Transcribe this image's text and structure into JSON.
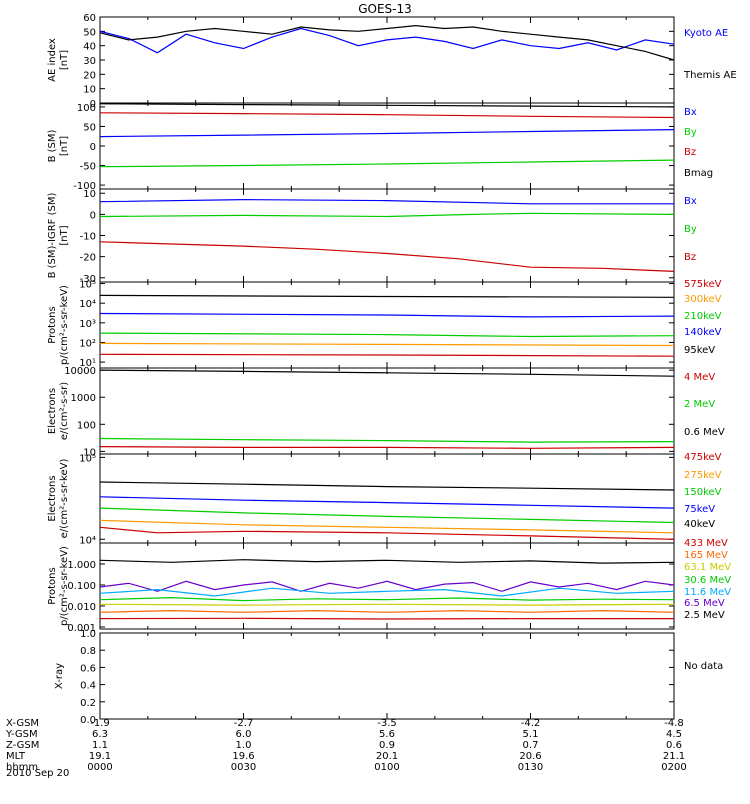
{
  "title": "GOES-13",
  "date": "2010 Sep 20",
  "orbit_table": {
    "row_labels": [
      "X-GSM",
      "Y-GSM",
      "Z-GSM",
      "MLT",
      "hhmm"
    ],
    "columns": [
      [
        "-1.9",
        "6.3",
        "1.1",
        "19.1",
        "0000"
      ],
      [
        "-2.7",
        "6.0",
        "1.0",
        "19.6",
        "0030"
      ],
      [
        "-3.5",
        "5.6",
        "0.9",
        "20.1",
        "0100"
      ],
      [
        "-4.2",
        "5.1",
        "0.7",
        "20.6",
        "0130"
      ],
      [
        "-4.8",
        "4.5",
        "0.6",
        "21.1",
        "0200"
      ]
    ]
  },
  "chart_data": [
    {
      "type": "line",
      "ylabel": [
        "AE index",
        "[nT]"
      ],
      "scale": "linear",
      "ylim": [
        0,
        60
      ],
      "ticks": [
        "0",
        "10",
        "20",
        "30",
        "40",
        "50",
        "60"
      ],
      "tick_values": [
        0,
        10,
        20,
        30,
        40,
        50,
        60
      ],
      "x_hours": [
        0,
        2
      ],
      "legend": [
        {
          "label": "Kyoto AE",
          "color": "#0000ff"
        },
        {
          "label": "Themis AE",
          "color": "#000000"
        }
      ],
      "series": [
        {
          "name": "Kyoto AE",
          "color": "#0000ff",
          "x": [
            0,
            0.1,
            0.2,
            0.3,
            0.4,
            0.5,
            0.6,
            0.7,
            0.8,
            0.9,
            1.0,
            1.1,
            1.2,
            1.3,
            1.4,
            1.5,
            1.6,
            1.7,
            1.8,
            1.9,
            2.0
          ],
          "y": [
            50,
            45,
            35,
            48,
            42,
            38,
            46,
            52,
            47,
            40,
            44,
            46,
            43,
            38,
            44,
            40,
            38,
            42,
            37,
            44,
            41
          ]
        },
        {
          "name": "Themis AE",
          "color": "#000000",
          "x": [
            0,
            0.1,
            0.2,
            0.3,
            0.4,
            0.5,
            0.6,
            0.7,
            0.8,
            0.9,
            1.0,
            1.1,
            1.2,
            1.3,
            1.4,
            1.5,
            1.6,
            1.7,
            1.8,
            1.9,
            2.0
          ],
          "y": [
            49,
            44,
            46,
            50,
            52,
            50,
            48,
            53,
            51,
            50,
            52,
            54,
            52,
            53,
            50,
            48,
            46,
            44,
            40,
            36,
            30
          ]
        }
      ]
    },
    {
      "type": "line",
      "ylabel": [
        "B (SM)",
        "[nT]"
      ],
      "scale": "linear",
      "ylim": [
        -110,
        110
      ],
      "ticks": [
        "-100",
        "-50",
        "0",
        "50",
        "100"
      ],
      "tick_values": [
        -100,
        -50,
        0,
        50,
        100
      ],
      "x_hours": [
        0,
        2
      ],
      "legend": [
        {
          "label": "Bx",
          "color": "#0000ff"
        },
        {
          "label": "By",
          "color": "#00cc00"
        },
        {
          "label": "Bz",
          "color": "#cc0000"
        },
        {
          "label": "Bmag",
          "color": "#000000"
        }
      ],
      "series": [
        {
          "name": "Bmag",
          "color": "#000000",
          "x": [
            0,
            0.5,
            1.0,
            1.5,
            2.0
          ],
          "y": [
            108,
            106,
            104,
            102,
            100
          ]
        },
        {
          "name": "Bz",
          "color": "#cc0000",
          "x": [
            0,
            0.5,
            1.0,
            1.5,
            2.0
          ],
          "y": [
            85,
            83,
            80,
            76,
            73
          ]
        },
        {
          "name": "Bx",
          "color": "#0000ff",
          "x": [
            0,
            0.5,
            1.0,
            1.5,
            2.0
          ],
          "y": [
            24,
            28,
            32,
            37,
            42
          ]
        },
        {
          "name": "By",
          "color": "#00cc00",
          "x": [
            0,
            0.5,
            1.0,
            1.5,
            2.0
          ],
          "y": [
            -53,
            -50,
            -46,
            -41,
            -36
          ]
        }
      ]
    },
    {
      "type": "line",
      "ylabel": [
        "B (SM)-IGRF (SM)",
        "[nT]"
      ],
      "scale": "linear",
      "ylim": [
        -32,
        12
      ],
      "ticks": [
        "-30",
        "-20",
        "-10",
        "0",
        "10"
      ],
      "tick_values": [
        -30,
        -20,
        -10,
        0,
        10
      ],
      "x_hours": [
        0,
        2
      ],
      "legend": [
        {
          "label": "Bx",
          "color": "#0000ff"
        },
        {
          "label": "By",
          "color": "#00cc00"
        },
        {
          "label": "Bz",
          "color": "#cc0000"
        }
      ],
      "series": [
        {
          "name": "Bx",
          "color": "#0000ff",
          "x": [
            0,
            0.5,
            1.0,
            1.5,
            2.0
          ],
          "y": [
            6,
            7,
            6.5,
            5,
            5
          ]
        },
        {
          "name": "By",
          "color": "#00cc00",
          "x": [
            0,
            0.5,
            1.0,
            1.3,
            1.5,
            2.0
          ],
          "y": [
            -1,
            -0.5,
            -1,
            0,
            0.5,
            0
          ]
        },
        {
          "name": "Bz",
          "color": "#cc0000",
          "x": [
            0,
            0.25,
            0.5,
            0.75,
            1.0,
            1.25,
            1.5,
            1.75,
            2.0
          ],
          "y": [
            -13,
            -14,
            -15,
            -16.5,
            -18.5,
            -21,
            -25,
            -25.5,
            -27
          ]
        }
      ]
    },
    {
      "type": "line",
      "ylabel": [
        "Protons",
        "p/(cm²-s-sr-keV)"
      ],
      "scale": "log",
      "ylim": [
        5,
        120000
      ],
      "ticks": [
        "10¹",
        "10²",
        "10³",
        "10⁴",
        "10⁵"
      ],
      "tick_values": [
        10,
        100,
        1000,
        10000,
        100000
      ],
      "x_hours": [
        0,
        2
      ],
      "legend": [
        {
          "label": "575keV",
          "color": "#cc0000"
        },
        {
          "label": "300keV",
          "color": "#ff9900"
        },
        {
          "label": "210keV",
          "color": "#00cc00"
        },
        {
          "label": "140keV",
          "color": "#0000ff"
        },
        {
          "label": "95keV",
          "color": "#000000"
        }
      ],
      "series": [
        {
          "name": "95keV",
          "color": "#000000",
          "x": [
            0,
            1.0,
            2.0
          ],
          "y": [
            25000,
            22000,
            20000
          ]
        },
        {
          "name": "140keV",
          "color": "#0000ff",
          "x": [
            0,
            1.0,
            1.5,
            2.0
          ],
          "y": [
            3000,
            2500,
            2000,
            2200
          ]
        },
        {
          "name": "210keV",
          "color": "#00cc00",
          "x": [
            0,
            1.0,
            1.5,
            2.0
          ],
          "y": [
            300,
            250,
            200,
            220
          ]
        },
        {
          "name": "300keV",
          "color": "#ff9900",
          "x": [
            0,
            1.0,
            2.0
          ],
          "y": [
            90,
            80,
            70
          ]
        },
        {
          "name": "575keV",
          "color": "#cc0000",
          "x": [
            0,
            1.0,
            2.0
          ],
          "y": [
            25,
            23,
            20
          ]
        }
      ]
    },
    {
      "type": "line",
      "ylabel": [
        "Electrons",
        "e/(cm²-s-sr)"
      ],
      "scale": "log",
      "ylim": [
        8,
        12000
      ],
      "ticks": [
        "10",
        "100",
        "1000",
        "10000"
      ],
      "tick_values": [
        10,
        100,
        1000,
        10000
      ],
      "x_hours": [
        0,
        2
      ],
      "legend": [
        {
          "label": "4 MeV",
          "color": "#cc0000"
        },
        {
          "label": "2 MeV",
          "color": "#00cc00"
        },
        {
          "label": "0.6 MeV",
          "color": "#000000"
        }
      ],
      "series": [
        {
          "name": "0.6 MeV",
          "color": "#000000",
          "x": [
            0,
            0.5,
            1.0,
            1.5,
            2.0
          ],
          "y": [
            10000,
            9000,
            8000,
            7000,
            6000
          ]
        },
        {
          "name": "2 MeV",
          "color": "#00cc00",
          "x": [
            0,
            0.5,
            1.0,
            1.5,
            2.0
          ],
          "y": [
            30,
            27,
            25,
            22,
            23
          ]
        },
        {
          "name": "4 MeV",
          "color": "#cc0000",
          "x": [
            0,
            0.5,
            1.0,
            1.5,
            2.0
          ],
          "y": [
            15,
            14,
            14,
            13,
            14
          ]
        }
      ]
    },
    {
      "type": "line",
      "ylabel": [
        "Electrons",
        "e/(cm²-s-sr-keV)"
      ],
      "scale": "log",
      "ylim": [
        9000,
        110000
      ],
      "ticks": [
        "10⁴",
        "10⁵"
      ],
      "tick_values": [
        10000,
        100000
      ],
      "x_hours": [
        0,
        2
      ],
      "legend": [
        {
          "label": "475keV",
          "color": "#cc0000"
        },
        {
          "label": "275keV",
          "color": "#ff9900"
        },
        {
          "label": "150keV",
          "color": "#00cc00"
        },
        {
          "label": "75keV",
          "color": "#0000ff"
        },
        {
          "label": "40keV",
          "color": "#000000"
        }
      ],
      "series": [
        {
          "name": "40keV",
          "color": "#000000",
          "x": [
            0,
            0.5,
            1.0,
            1.5,
            2.0
          ],
          "y": [
            50000,
            47000,
            44000,
            42000,
            40000
          ]
        },
        {
          "name": "75keV",
          "color": "#0000ff",
          "x": [
            0,
            0.5,
            1.0,
            1.5,
            2.0
          ],
          "y": [
            33000,
            30000,
            28000,
            26000,
            24000
          ]
        },
        {
          "name": "150keV",
          "color": "#00cc00",
          "x": [
            0,
            0.5,
            1.0,
            1.5,
            2.0
          ],
          "y": [
            24000,
            21000,
            19000,
            17500,
            16000
          ]
        },
        {
          "name": "275keV",
          "color": "#ff9900",
          "x": [
            0,
            0.5,
            1.0,
            1.5,
            2.0
          ],
          "y": [
            17000,
            15000,
            14000,
            13000,
            12000
          ]
        },
        {
          "name": "475keV",
          "color": "#cc0000",
          "x": [
            0,
            0.2,
            0.5,
            1.0,
            1.5,
            2.0
          ],
          "y": [
            14000,
            12000,
            12500,
            12000,
            11000,
            10000
          ]
        }
      ]
    },
    {
      "type": "line",
      "ylabel": [
        "Protons",
        "p/(cm²-s-sr-keV)"
      ],
      "scale": "log",
      "ylim": [
        0.0008,
        10
      ],
      "ticks": [
        "0.001",
        "0.010",
        "0.100",
        "1.000"
      ],
      "tick_values": [
        0.001,
        0.01,
        0.1,
        1
      ],
      "x_hours": [
        0,
        2
      ],
      "legend": [
        {
          "label": "433 MeV",
          "color": "#cc0000"
        },
        {
          "label": "165 MeV",
          "color": "#ff6600"
        },
        {
          "label": "63.1 MeV",
          "color": "#cccc00"
        },
        {
          "label": "30.6 MeV",
          "color": "#00cc00"
        },
        {
          "label": "11.6 MeV",
          "color": "#00aaff"
        },
        {
          "label": "6.5 MeV",
          "color": "#6600cc"
        },
        {
          "label": "2.5 MeV",
          "color": "#000000"
        }
      ],
      "series": [
        {
          "name": "2.5 MeV",
          "color": "#000000",
          "x": [
            0,
            0.25,
            0.5,
            0.75,
            1.0,
            1.25,
            1.5,
            1.75,
            2.0
          ],
          "y": [
            1.5,
            1.2,
            1.6,
            1.3,
            1.5,
            1.2,
            1.4,
            1.1,
            1.2
          ]
        },
        {
          "name": "6.5 MeV",
          "color": "#6600cc",
          "x": [
            0,
            0.1,
            0.2,
            0.3,
            0.4,
            0.5,
            0.6,
            0.7,
            0.8,
            0.9,
            1.0,
            1.1,
            1.2,
            1.3,
            1.4,
            1.5,
            1.6,
            1.7,
            1.8,
            1.9,
            2.0
          ],
          "y": [
            0.08,
            0.12,
            0.05,
            0.15,
            0.06,
            0.1,
            0.14,
            0.05,
            0.12,
            0.07,
            0.15,
            0.06,
            0.11,
            0.13,
            0.05,
            0.14,
            0.08,
            0.12,
            0.06,
            0.15,
            0.1
          ]
        },
        {
          "name": "11.6 MeV",
          "color": "#00aaff",
          "x": [
            0,
            0.2,
            0.4,
            0.6,
            0.8,
            1.0,
            1.2,
            1.4,
            1.6,
            1.8,
            2.0
          ],
          "y": [
            0.04,
            0.06,
            0.03,
            0.07,
            0.04,
            0.05,
            0.06,
            0.03,
            0.07,
            0.04,
            0.05
          ]
        },
        {
          "name": "30.6 MeV",
          "color": "#00cc00",
          "x": [
            0,
            0.25,
            0.5,
            0.75,
            1.0,
            1.25,
            1.5,
            1.75,
            2.0
          ],
          "y": [
            0.02,
            0.025,
            0.018,
            0.022,
            0.02,
            0.024,
            0.019,
            0.021,
            0.02
          ]
        },
        {
          "name": "63.1 MeV",
          "color": "#cccc00",
          "x": [
            0,
            0.5,
            1.0,
            1.5,
            2.0
          ],
          "y": [
            0.012,
            0.011,
            0.012,
            0.011,
            0.012
          ]
        },
        {
          "name": "165 MeV",
          "color": "#ff6600",
          "x": [
            0,
            0.25,
            0.5,
            0.75,
            1.0,
            1.25,
            1.5,
            1.75,
            2.0
          ],
          "y": [
            0.005,
            0.006,
            0.005,
            0.006,
            0.005,
            0.006,
            0.005,
            0.006,
            0.005
          ]
        },
        {
          "name": "433 MeV",
          "color": "#cc0000",
          "x": [
            0,
            0.5,
            1.0,
            1.5,
            2.0
          ],
          "y": [
            0.0025,
            0.0026,
            0.0024,
            0.0025,
            0.0025
          ]
        }
      ]
    },
    {
      "type": "line",
      "ylabel": [
        "X-ray"
      ],
      "scale": "linear",
      "ylim": [
        0,
        1
      ],
      "ticks": [
        "0.0",
        "0.2",
        "0.4",
        "0.6",
        "0.8",
        "1.0"
      ],
      "tick_values": [
        0,
        0.2,
        0.4,
        0.6,
        0.8,
        1.0
      ],
      "x_hours": [
        0,
        2
      ],
      "legend": [
        {
          "label": "No data",
          "color": "#000000"
        }
      ],
      "series": []
    }
  ]
}
